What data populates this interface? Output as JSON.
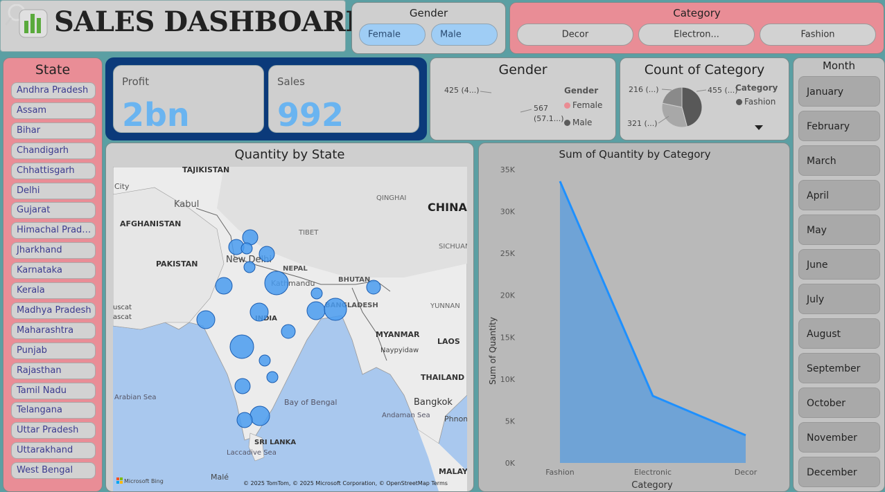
{
  "header": {
    "title": "SALES DASHBOARD"
  },
  "gender_slicer": {
    "title": "Gender",
    "options": [
      "Female",
      "Male"
    ]
  },
  "category_slicer": {
    "title": "Category",
    "options": [
      "Decor",
      "Electron...",
      "Fashion"
    ]
  },
  "state_slicer": {
    "title": "State",
    "items": [
      "Andhra Pradesh",
      "Assam",
      "Bihar",
      "Chandigarh",
      "Chhattisgarh",
      "Delhi",
      "Gujarat",
      "Himachal Prade...",
      "Jharkhand",
      "Karnataka",
      "Kerala",
      "Madhya Pradesh",
      "Maharashtra",
      "Punjab",
      "Rajasthan",
      "Tamil Nadu",
      "Telangana",
      "Uttar Pradesh",
      "Uttarakhand",
      "West Bengal"
    ]
  },
  "kpis": [
    {
      "label": "Profit",
      "value": "2bn"
    },
    {
      "label": "Sales",
      "value": "992"
    }
  ],
  "gender_pie": {
    "title": "Gender",
    "legend_title": "Gender",
    "slices": [
      {
        "name": "Female",
        "value": 567,
        "label": "567 (57.1...)",
        "color": "#ea8c93"
      },
      {
        "name": "Male",
        "value": 425,
        "label": "425 (4...)",
        "color": "#5c5c5c"
      }
    ]
  },
  "category_pie": {
    "title": "Count of Category",
    "legend_title": "Category",
    "legend_items": [
      "Fashion"
    ],
    "slices": [
      {
        "name": "Fashion",
        "value": 455,
        "label": "455 (...)",
        "color": "#585858"
      },
      {
        "name": "Electronic",
        "value": 321,
        "label": "321 (...)",
        "color": "#a8a8a8"
      },
      {
        "name": "Decor",
        "value": 216,
        "label": "216 (...)",
        "color": "#8a8a8a"
      }
    ]
  },
  "month_slicer": {
    "title": "Month",
    "items": [
      "January",
      "February",
      "March",
      "April",
      "May",
      "June",
      "July",
      "August",
      "September",
      "October",
      "November",
      "December"
    ]
  },
  "map": {
    "title": "Quantity by State",
    "labels": [
      "TAJIKISTAN",
      "City",
      "Kabul",
      "AFGHANISTAN",
      "PAKISTAN",
      "New Delhi",
      "NEPAL",
      "Kathmandu",
      "BHUTAN",
      "INDIA",
      "BANGLADESH",
      "QINGHAI",
      "TIBET",
      "CHINA",
      "SICHUAN",
      "YUNNAN",
      "MYANMAR",
      "Naypyidaw",
      "LAOS",
      "THAILAND",
      "Bangkok",
      "Phnom",
      "Andaman Sea",
      "Bay of Bengal",
      "Arabian Sea",
      "Laccadive Sea",
      "SRI LANKA",
      "Malé",
      "MALAYS",
      "uscat",
      "ascat"
    ],
    "attribution": "© 2025 TomTom, © 2025 Microsoft Corporation, © OpenStreetMap  Terms",
    "brand": "Microsoft Bing"
  },
  "chart_data": {
    "type": "area",
    "title": "Sum of Quantity by Category",
    "xlabel": "Category",
    "ylabel": "Sum of Quantity",
    "categories": [
      "Fashion",
      "Electronic",
      "Decor"
    ],
    "values": [
      33600,
      8000,
      3300
    ],
    "ylim": [
      0,
      35000
    ],
    "yticks": [
      "0K",
      "5K",
      "10K",
      "15K",
      "20K",
      "25K",
      "30K",
      "35K"
    ],
    "color": "#1e90ff",
    "fill": "#6fa3d6"
  }
}
